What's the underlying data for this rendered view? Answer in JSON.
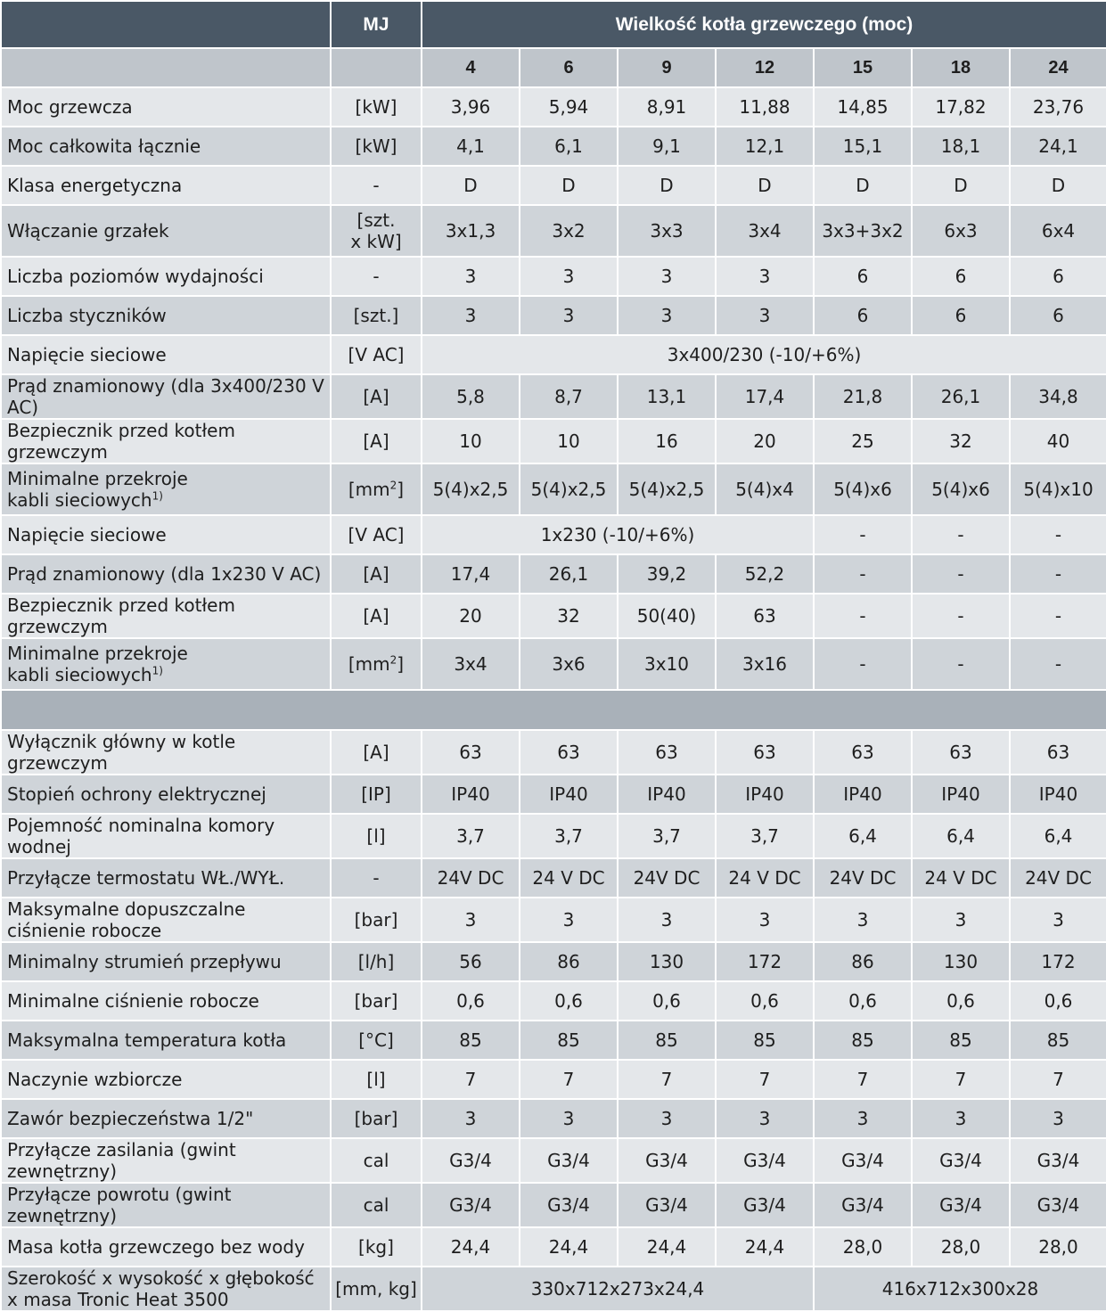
{
  "header": {
    "unit_col": "MJ",
    "group_title": "Wielkość kotła grzewczego (moc)",
    "sizes": [
      "4",
      "6",
      "9",
      "12",
      "15",
      "18",
      "24"
    ]
  },
  "rows_top": [
    {
      "label": "Moc grzewcza",
      "unit": "[kW]",
      "values": [
        "3,96",
        "5,94",
        "8,91",
        "11,88",
        "14,85",
        "17,82",
        "23,76"
      ]
    },
    {
      "label": "Moc całkowita łącznie",
      "unit": "[kW]",
      "values": [
        "4,1",
        "6,1",
        "9,1",
        "12,1",
        "15,1",
        "18,1",
        "24,1"
      ]
    },
    {
      "label": "Klasa energetyczna",
      "unit": "-",
      "values": [
        "D",
        "D",
        "D",
        "D",
        "D",
        "D",
        "D"
      ]
    },
    {
      "label": "Włączanie grzałek",
      "unit_l1": "[szt.",
      "unit_l2": "x kW]",
      "values": [
        "3x1,3",
        "3x2",
        "3x3",
        "3x4",
        "3x3+3x2",
        "6x3",
        "6x4"
      ]
    },
    {
      "label": "Liczba poziomów wydajności",
      "unit": "-",
      "values": [
        "3",
        "3",
        "3",
        "3",
        "6",
        "6",
        "6"
      ]
    },
    {
      "label": "Liczba styczników",
      "unit": "[szt.]",
      "values": [
        "3",
        "3",
        "3",
        "3",
        "6",
        "6",
        "6"
      ]
    },
    {
      "label": "Napięcie sieciowe",
      "unit": "[V AC]",
      "merged": "3x400/230 (-10/+6%)"
    },
    {
      "label": "Prąd znamionowy (dla 3x400/230 V AC)",
      "unit": "[A]",
      "values": [
        "5,8",
        "8,7",
        "13,1",
        "17,4",
        "21,8",
        "26,1",
        "34,8"
      ]
    },
    {
      "label": "Bezpiecznik przed kotłem grzewczym",
      "unit": "[A]",
      "values": [
        "10",
        "10",
        "16",
        "20",
        "25",
        "32",
        "40"
      ]
    },
    {
      "label_l1": "Minimalne przekroje",
      "label_l2": "kabli sieciowych",
      "sup": "1)",
      "unit": "[mm",
      "unit_sup": "2",
      "unit_end": "]",
      "values": [
        "5(4)x2,5",
        "5(4)x2,5",
        "5(4)x2,5",
        "5(4)x4",
        "5(4)x6",
        "5(4)x6",
        "5(4)x10"
      ]
    },
    {
      "label": "Napięcie sieciowe",
      "unit": "[V AC]",
      "merged": "1x230 (-10/+6%)",
      "rest": [
        "-",
        "-",
        "-"
      ]
    },
    {
      "label": "Prąd znamionowy (dla 1x230 V AC)",
      "unit": "[A]",
      "values": [
        "17,4",
        "26,1",
        "39,2",
        "52,2",
        "-",
        "-",
        "-"
      ]
    },
    {
      "label": "Bezpiecznik przed kotłem grzewczym",
      "unit": "[A]",
      "values": [
        "20",
        "32",
        "50(40)",
        "63",
        "-",
        "-",
        "-"
      ]
    },
    {
      "label_l1": "Minimalne przekroje",
      "label_l2": "kabli sieciowych",
      "sup": "1)",
      "unit": "[mm",
      "unit_sup": "2",
      "unit_end": "]",
      "values": [
        "3x4",
        "3x6",
        "3x10",
        "3x16",
        "-",
        "-",
        "-"
      ]
    }
  ],
  "rows_bottom": [
    {
      "label": "Wyłącznik główny w kotle grzewczym",
      "unit": "[A]",
      "values": [
        "63",
        "63",
        "63",
        "63",
        "63",
        "63",
        "63"
      ]
    },
    {
      "label": "Stopień ochrony elektrycznej",
      "unit": "[IP]",
      "values": [
        "IP40",
        "IP40",
        "IP40",
        "IP40",
        "IP40",
        "IP40",
        "IP40"
      ]
    },
    {
      "label": "Pojemność nominalna komory wodnej",
      "unit": "[l]",
      "values": [
        "3,7",
        "3,7",
        "3,7",
        "3,7",
        "6,4",
        "6,4",
        "6,4"
      ]
    },
    {
      "label": "Przyłącze termostatu WŁ./WYŁ.",
      "unit": "-",
      "values": [
        "24V DC",
        "24 V DC",
        "24V DC",
        "24 V DC",
        "24V DC",
        "24 V DC",
        "24V DC"
      ]
    },
    {
      "label_l1": "Maksymalne dopuszczalne",
      "label_l2": "ciśnienie robocze",
      "unit": "[bar]",
      "values": [
        "3",
        "3",
        "3",
        "3",
        "3",
        "3",
        "3"
      ]
    },
    {
      "label": "Minimalny strumień przepływu",
      "unit": "[l/h]",
      "values": [
        "56",
        "86",
        "130",
        "172",
        "86",
        "130",
        "172"
      ]
    },
    {
      "label": "Minimalne ciśnienie robocze",
      "unit": "[bar]",
      "values": [
        "0,6",
        "0,6",
        "0,6",
        "0,6",
        "0,6",
        "0,6",
        "0,6"
      ]
    },
    {
      "label": "Maksymalna temperatura kotła",
      "unit": "[°C]",
      "values": [
        "85",
        "85",
        "85",
        "85",
        "85",
        "85",
        "85"
      ]
    },
    {
      "label": "Naczynie wzbiorcze",
      "unit": "[l]",
      "values": [
        "7",
        "7",
        "7",
        "7",
        "7",
        "7",
        "7"
      ]
    },
    {
      "label": "Zawór bezpieczeństwa 1/2\"",
      "unit": "[bar]",
      "values": [
        "3",
        "3",
        "3",
        "3",
        "3",
        "3",
        "3"
      ]
    },
    {
      "label": "Przyłącze zasilania (gwint zewnętrzny)",
      "unit": "cal",
      "values": [
        "G3/4",
        "G3/4",
        "G3/4",
        "G3/4",
        "G3/4",
        "G3/4",
        "G3/4"
      ]
    },
    {
      "label": "Przyłącze powrotu (gwint zewnętrzny)",
      "unit": "cal",
      "values": [
        "G3/4",
        "G3/4",
        "G3/4",
        "G3/4",
        "G3/4",
        "G3/4",
        "G3/4"
      ]
    },
    {
      "label": "Masa kotła grzewczego bez wody",
      "unit": "[kg]",
      "values": [
        "24,4",
        "24,4",
        "24,4",
        "24,4",
        "28,0",
        "28,0",
        "28,0"
      ]
    },
    {
      "label_l1": "Szerokość x wysokość x głębokość",
      "label_l2": "x masa Tronic Heat 3500",
      "unit": "[mm, kg]",
      "merged_a": "330x712x273x24,4",
      "merged_b": "416x712x300x28"
    }
  ]
}
